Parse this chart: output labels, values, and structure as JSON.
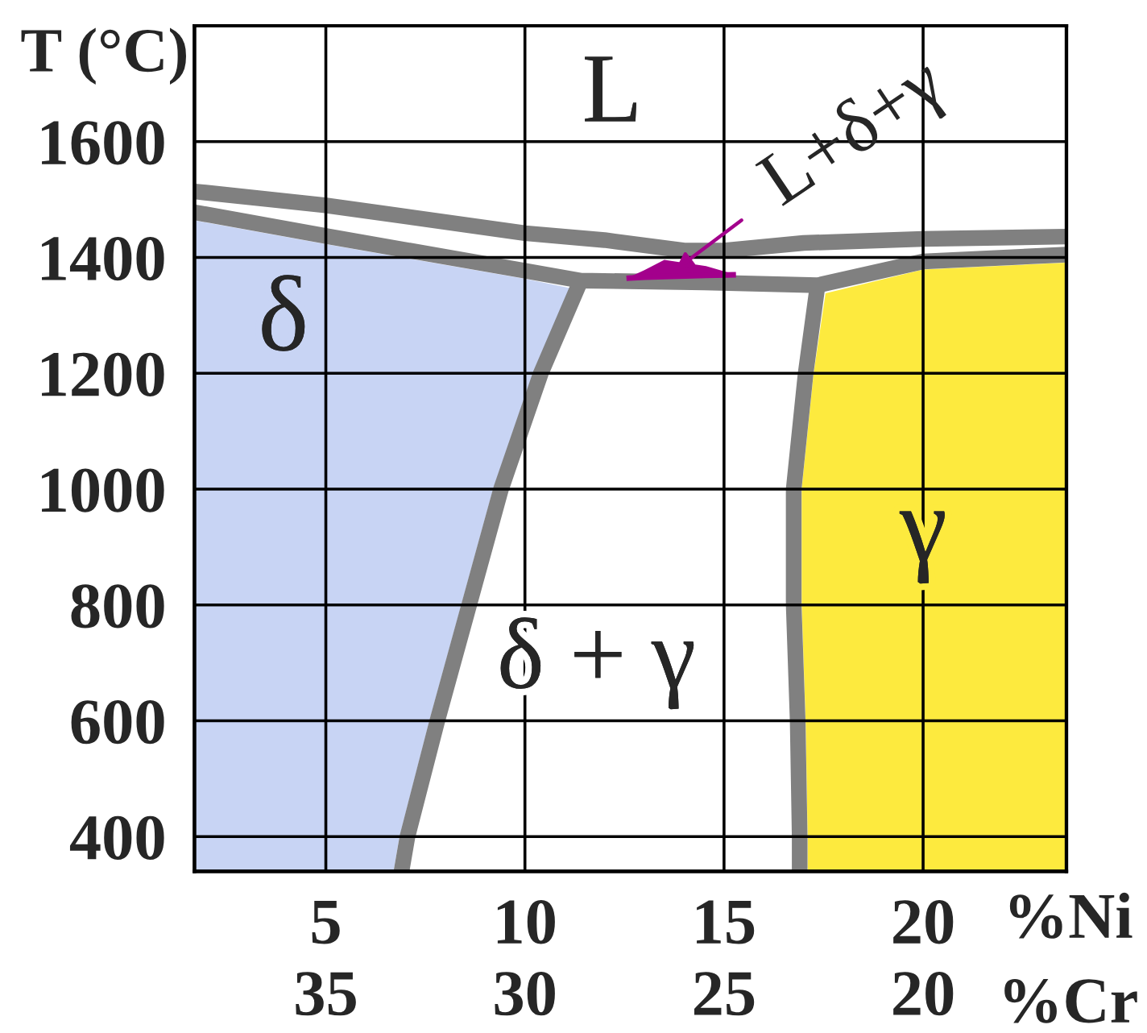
{
  "chart_data": {
    "type": "line",
    "ylabel": "T (°C)",
    "xlabel": "%Ni",
    "x2label": "%Cr",
    "xlim": [
      1.7,
      23.6
    ],
    "ylim": [
      340,
      1800
    ],
    "xticks": [
      5,
      10,
      15,
      20
    ],
    "yticks": [
      400,
      600,
      800,
      1000,
      1200,
      1400,
      1600
    ],
    "x2lim": [
      38.3,
      16.4
    ],
    "x2ticks": [
      35,
      30,
      25,
      20
    ],
    "grid": true,
    "series": [
      {
        "type": "area",
        "color": "#c8d4f4",
        "x": [
          1.7,
          5,
          10,
          11.2,
          10.2,
          9.2,
          8.4,
          7.6,
          6.85,
          6.7
        ],
        "values": [
          1464,
          1423,
          1363,
          1346,
          1200,
          1000,
          800,
          600,
          400,
          340
        ]
      },
      {
        "type": "area",
        "color": "#fdea3e",
        "x": [
          17.1,
          17.1,
          17.05,
          16.95,
          16.95,
          17.25,
          17.55,
          20,
          23.6
        ],
        "values": [
          340,
          400,
          600,
          800,
          1000,
          1200,
          1338,
          1379,
          1391
        ]
      },
      {
        "color": "#808080",
        "x": [
          1.7,
          5,
          10,
          12,
          14,
          15,
          17,
          20,
          23.6
        ],
        "values": [
          1514,
          1490,
          1442,
          1430,
          1412,
          1412,
          1425,
          1432,
          1436
        ]
      },
      {
        "color": "#808080",
        "x": [
          1.7,
          5,
          10,
          11.4,
          14.5,
          17.35,
          20,
          23.6
        ],
        "values": [
          1478,
          1437,
          1377,
          1360,
          1357,
          1352,
          1393,
          1405
        ]
      },
      {
        "color": "#808080",
        "x": [
          11.4,
          10.4,
          9.4,
          8.6,
          7.8,
          7.05,
          6.9
        ],
        "values": [
          1360,
          1200,
          1000,
          800,
          600,
          400,
          340
        ]
      },
      {
        "color": "#808080",
        "x": [
          17.35,
          17.05,
          16.75,
          16.75,
          16.85,
          16.9,
          16.9
        ],
        "values": [
          1352,
          1200,
          1000,
          800,
          600,
          400,
          340
        ]
      },
      {
        "name": "L+δ+γ",
        "color": "#a3008c",
        "x": [
          12.55,
          13.0,
          13.5,
          14.55,
          15.3
        ],
        "values": [
          1364,
          1366,
          1367,
          1369,
          1370
        ],
        "lower": [
          1364,
          1366,
          1367,
          1369,
          1370
        ],
        "upper": [
          1364,
          1378,
          1396,
          1385,
          1370
        ]
      }
    ],
    "annotations": [
      "L",
      "δ",
      "δ + γ",
      "γ"
    ]
  }
}
